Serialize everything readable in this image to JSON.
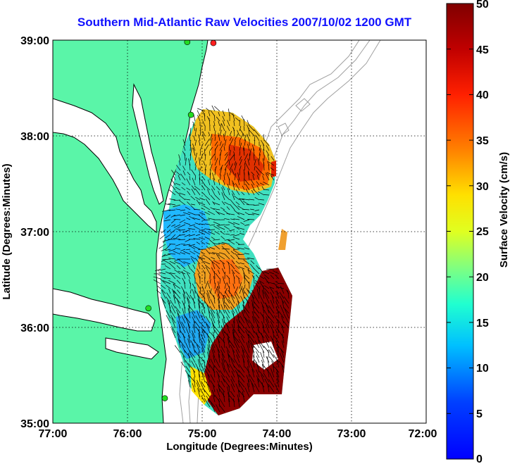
{
  "title": "Southern Mid-Atlantic Raw Velocities 2007/10/02 1200 GMT",
  "colors": {
    "land": "#5af5a8",
    "coast": "#000000",
    "bathymetry": "#a0a0a0",
    "station": "#22dd22",
    "station_alt": "#ff2020",
    "title": "#1010ff"
  },
  "chart_data": {
    "type": "heatmap",
    "xlabel": "Longitude (Degrees:Minutes)",
    "ylabel": "Latitude (Degrees:Minutes)",
    "x_ticks": [
      "77:00",
      "76:00",
      "75:00",
      "74:00",
      "73:00",
      "72:00"
    ],
    "y_ticks": [
      "39:00",
      "38:00",
      "37:00",
      "36:00",
      "35:00"
    ],
    "xlim": [
      -77,
      -72
    ],
    "ylim": [
      35,
      39
    ],
    "grid": true,
    "colorbar": {
      "label": "Surface Velocity (cm/s)",
      "range": [
        0,
        50
      ],
      "ticks": [
        "0",
        "5",
        "10",
        "15",
        "20",
        "25",
        "30",
        "35",
        "40",
        "45",
        "50"
      ],
      "colormap": "jet"
    },
    "stations": [
      {
        "lon": -75.2,
        "lat": 38.98,
        "color": "station"
      },
      {
        "lon": -74.85,
        "lat": 38.97,
        "color": "station_alt"
      },
      {
        "lon": -75.15,
        "lat": 38.22,
        "color": "station"
      },
      {
        "lon": -75.72,
        "lat": 36.2,
        "color": "station"
      },
      {
        "lon": -75.5,
        "lat": 35.26,
        "color": "station"
      }
    ]
  }
}
